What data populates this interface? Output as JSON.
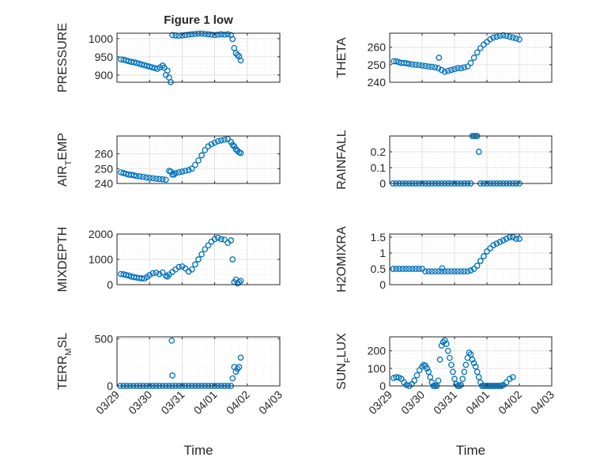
{
  "figure": {
    "title": "Figure 1 low",
    "xlabel": "Time",
    "xticks": [
      "03/29",
      "03/30",
      "03/31",
      "04/01",
      "04/02",
      "04/03"
    ],
    "marker_color": "#0072BD"
  },
  "chart_data": [
    {
      "type": "scatter",
      "ylabel": "PRESSURE",
      "yticks": [
        900,
        950,
        1000
      ],
      "ylim": [
        880,
        1015
      ],
      "xlim": [
        "03/29",
        "04/03"
      ],
      "marker": "circle",
      "grid": true,
      "x": [
        0.12,
        0.2,
        0.28,
        0.36,
        0.44,
        0.52,
        0.6,
        0.68,
        0.76,
        0.84,
        0.92,
        1.0,
        1.08,
        1.16,
        1.24,
        1.32,
        1.4,
        1.45,
        1.5,
        1.55,
        1.6,
        1.65,
        1.7,
        1.8,
        1.9,
        2.0,
        2.1,
        2.2,
        2.3,
        2.4,
        2.5,
        2.6,
        2.7,
        2.8,
        2.9,
        3.0,
        3.1,
        3.2,
        3.3,
        3.4,
        3.5,
        3.55,
        3.6,
        3.65,
        3.7,
        3.75,
        3.8
      ],
      "y": [
        943,
        942,
        940,
        938,
        936,
        935,
        933,
        931,
        929,
        927,
        925,
        923,
        921,
        919,
        917,
        921,
        926,
        920,
        900,
        912,
        893,
        880,
        1010,
        1009,
        1008,
        1009,
        1010,
        1011,
        1012,
        1013,
        1014,
        1014,
        1013,
        1012,
        1011,
        1010,
        1011,
        1012,
        1011,
        1012,
        1010,
        999,
        974,
        960,
        955,
        951,
        940
      ]
    },
    {
      "type": "scatter",
      "ylabel": "THETA",
      "yticks": [
        240,
        250,
        260
      ],
      "ylim": [
        240,
        268
      ],
      "xlim": [
        "03/29",
        "04/03"
      ],
      "marker": "circle",
      "grid": true,
      "x": [
        0.12,
        0.2,
        0.28,
        0.36,
        0.44,
        0.52,
        0.6,
        0.7,
        0.8,
        0.9,
        1.0,
        1.1,
        1.2,
        1.3,
        1.4,
        1.5,
        1.6,
        1.7,
        1.8,
        1.9,
        2.0,
        2.1,
        2.2,
        2.3,
        2.4,
        2.5,
        2.6,
        2.7,
        2.8,
        2.9,
        3.0,
        3.1,
        3.2,
        3.3,
        3.4,
        3.5,
        3.6,
        3.7,
        3.8,
        3.9,
        4.0,
        1.52
      ],
      "y": [
        252,
        252,
        251.5,
        251,
        251,
        250.8,
        250.5,
        250.2,
        250,
        249.8,
        249.5,
        249.3,
        249,
        248.8,
        248.5,
        248,
        247,
        246,
        246.5,
        247,
        247.5,
        248,
        248,
        248.5,
        249,
        251,
        254,
        257,
        259.5,
        261.5,
        263,
        264.5,
        265.5,
        266,
        266.5,
        266.8,
        266.5,
        266,
        265.5,
        265,
        264.5,
        254
      ]
    },
    {
      "type": "scatter",
      "ylabel": "AIR_TEMP",
      "yticks": [
        240,
        250,
        260
      ],
      "ylim": [
        240,
        272
      ],
      "xlim": [
        "03/29",
        "04/03"
      ],
      "marker": "circle",
      "grid": true,
      "x": [
        0.12,
        0.2,
        0.28,
        0.36,
        0.44,
        0.52,
        0.6,
        0.7,
        0.8,
        0.9,
        1.0,
        1.1,
        1.2,
        1.3,
        1.4,
        1.5,
        1.6,
        1.65,
        1.7,
        1.75,
        1.8,
        1.9,
        2.0,
        2.1,
        2.2,
        2.3,
        2.4,
        2.5,
        2.6,
        2.7,
        2.8,
        2.9,
        3.0,
        3.1,
        3.2,
        3.3,
        3.4,
        3.5,
        3.55,
        3.6,
        3.65,
        3.7,
        3.75,
        3.8
      ],
      "y": [
        247.5,
        247,
        246.5,
        246,
        245.8,
        245.5,
        245,
        244.8,
        244.5,
        244,
        243.8,
        243.5,
        243.2,
        243,
        242.8,
        242.5,
        248.5,
        248,
        246,
        246,
        247,
        247.5,
        248,
        248.5,
        249,
        250,
        252.5,
        255.5,
        259,
        262.5,
        265,
        266.5,
        267.5,
        268.5,
        269,
        269.5,
        270,
        268,
        266,
        265,
        263,
        262,
        261,
        260.5
      ]
    },
    {
      "type": "scatter",
      "ylabel": "RAINFALL",
      "yticks": [
        0,
        0.1,
        0.2
      ],
      "ylim": [
        0,
        0.3
      ],
      "xlim": [
        "03/29",
        "04/03"
      ],
      "marker": "circle",
      "grid": true,
      "x": [
        0.1,
        0.2,
        0.3,
        0.4,
        0.5,
        0.6,
        0.7,
        0.8,
        0.9,
        1.0,
        1.1,
        1.2,
        1.3,
        1.4,
        1.5,
        1.6,
        1.7,
        1.8,
        1.9,
        2.0,
        2.1,
        2.2,
        2.3,
        2.4,
        2.5,
        2.55,
        2.6,
        2.65,
        2.7,
        2.75,
        2.8,
        2.9,
        3.0,
        3.1,
        3.2,
        3.3,
        3.4,
        3.5,
        3.6,
        3.7,
        3.8,
        3.9,
        4.0
      ],
      "y": [
        0,
        0,
        0,
        0,
        0,
        0,
        0,
        0,
        0,
        0,
        0,
        0,
        0,
        0,
        0,
        0,
        0,
        0,
        0,
        0,
        0,
        0,
        0,
        0,
        0,
        0.3,
        0.3,
        0.3,
        0.3,
        0.2,
        0,
        0,
        0,
        0,
        0,
        0,
        0,
        0,
        0,
        0,
        0,
        0,
        0
      ]
    },
    {
      "type": "scatter",
      "ylabel": "MIXDEPTH",
      "yticks": [
        0,
        1000,
        2000
      ],
      "ylim": [
        0,
        2000
      ],
      "xlim": [
        "03/29",
        "04/03"
      ],
      "marker": "circle",
      "grid": true,
      "x": [
        0.12,
        0.2,
        0.28,
        0.36,
        0.44,
        0.52,
        0.6,
        0.68,
        0.76,
        0.84,
        0.92,
        1.0,
        1.1,
        1.2,
        1.3,
        1.4,
        1.5,
        1.55,
        1.6,
        1.7,
        1.8,
        1.9,
        2.0,
        2.1,
        2.2,
        2.3,
        2.4,
        2.5,
        2.6,
        2.7,
        2.8,
        2.9,
        3.0,
        3.1,
        3.2,
        3.3,
        3.4,
        3.5,
        3.55,
        3.6,
        3.65,
        3.7,
        3.75,
        3.8
      ],
      "y": [
        420,
        410,
        380,
        360,
        320,
        300,
        280,
        260,
        250,
        240,
        300,
        380,
        450,
        470,
        420,
        480,
        350,
        320,
        400,
        500,
        600,
        700,
        720,
        640,
        520,
        600,
        800,
        1000,
        1200,
        1400,
        1550,
        1700,
        1800,
        1850,
        1800,
        1780,
        1650,
        1750,
        1000,
        100,
        200,
        50,
        100,
        150
      ]
    },
    {
      "type": "scatter",
      "ylabel": "H2OMIXRA",
      "yticks": [
        0,
        0.5,
        1,
        1.5
      ],
      "ylim": [
        0,
        1.6
      ],
      "xlim": [
        "03/29",
        "04/03"
      ],
      "marker": "circle",
      "grid": true,
      "x": [
        0.1,
        0.2,
        0.3,
        0.4,
        0.5,
        0.6,
        0.7,
        0.8,
        0.9,
        1.0,
        1.1,
        1.2,
        1.3,
        1.4,
        1.5,
        1.6,
        1.7,
        1.8,
        1.9,
        2.0,
        2.1,
        2.2,
        2.3,
        2.4,
        2.5,
        2.6,
        2.7,
        2.8,
        2.9,
        3.0,
        3.1,
        3.2,
        3.3,
        3.4,
        3.5,
        3.6,
        3.7,
        3.8,
        3.9,
        4.0,
        1.62
      ],
      "y": [
        0.5,
        0.5,
        0.5,
        0.5,
        0.5,
        0.5,
        0.5,
        0.5,
        0.5,
        0.5,
        0.42,
        0.42,
        0.42,
        0.42,
        0.42,
        0.42,
        0.42,
        0.42,
        0.42,
        0.42,
        0.42,
        0.42,
        0.42,
        0.42,
        0.45,
        0.5,
        0.6,
        0.75,
        0.9,
        1.05,
        1.15,
        1.25,
        1.3,
        1.35,
        1.4,
        1.45,
        1.5,
        1.5,
        1.45,
        1.45,
        0.52
      ]
    },
    {
      "type": "scatter",
      "ylabel": "TERR_MSL",
      "yticks": [
        0,
        500
      ],
      "ylim": [
        0,
        520
      ],
      "xlim": [
        "03/29",
        "04/03"
      ],
      "marker": "circle",
      "grid": true,
      "x": [
        0.1,
        0.2,
        0.3,
        0.4,
        0.5,
        0.6,
        0.7,
        0.8,
        0.9,
        1.0,
        1.1,
        1.2,
        1.3,
        1.4,
        1.5,
        1.6,
        1.7,
        1.8,
        1.9,
        2.0,
        2.1,
        2.2,
        2.3,
        2.4,
        2.5,
        2.6,
        2.7,
        2.8,
        2.9,
        3.0,
        3.1,
        3.2,
        3.3,
        3.4,
        3.5,
        3.55,
        3.6,
        3.65,
        3.7,
        3.75,
        3.8,
        1.68,
        1.7
      ],
      "y": [
        0,
        0,
        0,
        0,
        0,
        0,
        0,
        0,
        0,
        0,
        0,
        0,
        0,
        0,
        0,
        0,
        0,
        0,
        0,
        0,
        0,
        0,
        0,
        0,
        0,
        0,
        0,
        0,
        0,
        0,
        0,
        0,
        0,
        0,
        0,
        80,
        200,
        150,
        180,
        200,
        300,
        480,
        110
      ]
    },
    {
      "type": "scatter",
      "ylabel": "SUN_FLUX",
      "yticks": [
        0,
        100,
        200
      ],
      "ylim": [
        0,
        280
      ],
      "xlim": [
        "03/29",
        "04/03"
      ],
      "marker": "circle",
      "grid": true,
      "x": [
        0.12,
        0.2,
        0.28,
        0.36,
        0.44,
        0.52,
        0.6,
        0.68,
        0.76,
        0.84,
        0.92,
        1.0,
        1.05,
        1.1,
        1.15,
        1.2,
        1.25,
        1.3,
        1.35,
        1.4,
        1.45,
        1.5,
        1.55,
        1.6,
        1.65,
        1.7,
        1.75,
        1.8,
        1.85,
        1.9,
        1.95,
        2.0,
        2.05,
        2.1,
        2.15,
        2.2,
        2.25,
        2.3,
        2.35,
        2.4,
        2.45,
        2.5,
        2.55,
        2.6,
        2.65,
        2.7,
        2.75,
        2.8,
        2.85,
        2.9,
        2.95,
        3.0,
        3.05,
        3.1,
        3.15,
        3.2,
        3.25,
        3.3,
        3.35,
        3.4,
        3.45,
        3.5,
        3.6,
        3.7,
        3.8
      ],
      "y": [
        45,
        50,
        48,
        40,
        20,
        5,
        0,
        10,
        30,
        60,
        90,
        110,
        120,
        115,
        100,
        80,
        50,
        20,
        0,
        0,
        0,
        30,
        150,
        230,
        250,
        260,
        240,
        200,
        160,
        120,
        80,
        40,
        10,
        0,
        0,
        5,
        40,
        80,
        120,
        160,
        190,
        180,
        150,
        130,
        110,
        80,
        50,
        20,
        0,
        0,
        0,
        0,
        0,
        0,
        0,
        0,
        0,
        0,
        0,
        0,
        0,
        5,
        20,
        40,
        50
      ]
    }
  ]
}
